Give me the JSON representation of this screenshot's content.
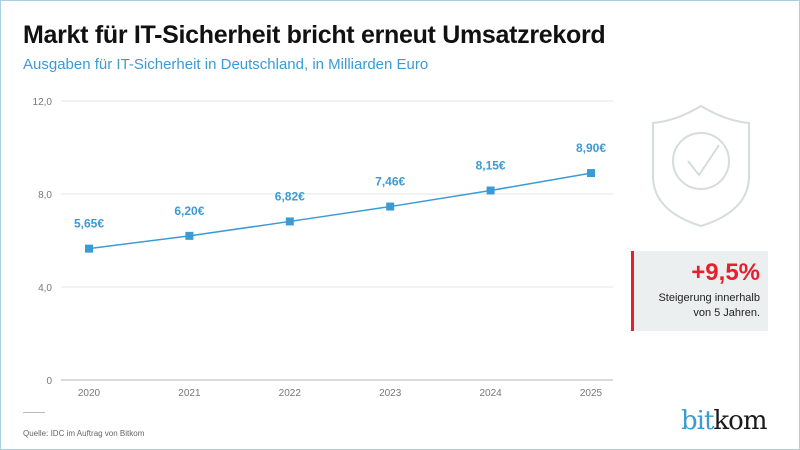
{
  "title": "Markt für IT-Sicherheit bricht erneut Umsatzrekord",
  "subtitle": "Ausgaben für IT-Sicherheit in Deutschland, in Milliarden Euro",
  "source": "Quelle: IDC im Auftrag von Bitkom",
  "callout": {
    "value": "+9,5%",
    "line1": "Steigerung innerhalb",
    "line2": "von 5 Jahren."
  },
  "logo": {
    "part1": "bit",
    "part2": "kom"
  },
  "icon": "shield-check-icon",
  "colors": {
    "series": "#3a9bd5",
    "accent": "#e5202e",
    "grid": "#e6e6e6"
  },
  "chart_data": {
    "type": "line",
    "categories": [
      "2020",
      "2021",
      "2022",
      "2023",
      "2024",
      "2025"
    ],
    "values": [
      5.65,
      6.2,
      6.82,
      7.46,
      8.15,
      8.9
    ],
    "data_labels": [
      "5,65€",
      "6,20€",
      "6,82€",
      "7,46€",
      "8,15€",
      "8,90€"
    ],
    "yticks": [
      0,
      4,
      8,
      12
    ],
    "ytick_labels": [
      "0",
      "4,0",
      "8,0",
      "12,0"
    ],
    "ylim": [
      0,
      12
    ],
    "grid": true,
    "marker": "square"
  }
}
